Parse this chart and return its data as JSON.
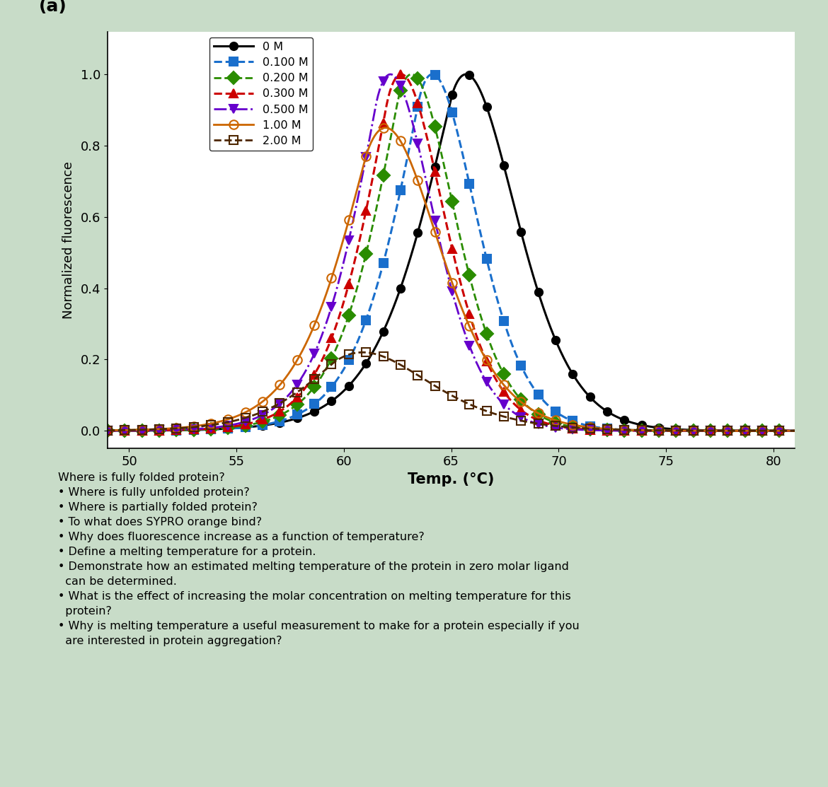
{
  "title_label": "(a)",
  "xlabel": "Temp. (°C)",
  "ylabel": "Normalized fluorescence",
  "xlim": [
    49,
    81
  ],
  "ylim": [
    -0.05,
    1.12
  ],
  "xticks": [
    50,
    55,
    60,
    65,
    70,
    75,
    80
  ],
  "yticks": [
    0,
    0.2,
    0.4,
    0.6,
    0.8,
    1
  ],
  "series": [
    {
      "label": "0 M",
      "color": "#000000",
      "linestyle": "-",
      "linewidth": 2.2,
      "marker": "o",
      "markersize": 8,
      "markerfacecolor": "#000000",
      "markeredgecolor": "#000000",
      "tm": 65.0,
      "peak": 1.0,
      "slope_up": 0.55,
      "slope_down": 0.18
    },
    {
      "label": "0.100 M",
      "color": "#1a6fcc",
      "linestyle": "--",
      "linewidth": 2.2,
      "marker": "s",
      "markersize": 9,
      "markerfacecolor": "#1a6fcc",
      "markeredgecolor": "#1a6fcc",
      "tm": 63.5,
      "peak": 1.0,
      "slope_up": 0.65,
      "slope_down": 0.22
    },
    {
      "label": "0.200 M",
      "color": "#2a8c00",
      "linestyle": "--",
      "linewidth": 2.0,
      "marker": "D",
      "markersize": 9,
      "markerfacecolor": "#2a8c00",
      "markeredgecolor": "#2a8c00",
      "tm": 62.5,
      "peak": 1.0,
      "slope_up": 0.68,
      "slope_down": 0.22
    },
    {
      "label": "0.300 M",
      "color": "#cc0000",
      "linestyle": "--",
      "linewidth": 2.2,
      "marker": "^",
      "markersize": 9,
      "markerfacecolor": "#cc0000",
      "markeredgecolor": "#cc0000",
      "tm": 62.0,
      "peak": 1.0,
      "slope_up": 0.7,
      "slope_down": 0.22
    },
    {
      "label": "0.500 M",
      "color": "#6600cc",
      "linestyle": "-.",
      "linewidth": 2.0,
      "marker": "v",
      "markersize": 9,
      "markerfacecolor": "#6600cc",
      "markeredgecolor": "#6600cc",
      "tm": 61.5,
      "peak": 1.0,
      "slope_up": 0.7,
      "slope_down": 0.22
    },
    {
      "label": "1.00 M",
      "color": "#cc6600",
      "linestyle": "-",
      "linewidth": 2.0,
      "marker": "o",
      "markersize": 9,
      "markerfacecolor": "none",
      "markeredgecolor": "#cc6600",
      "tm": 61.0,
      "peak": 0.85,
      "slope_up": 0.6,
      "slope_down": 0.15
    },
    {
      "label": "2.00 M",
      "color": "#4d2600",
      "linestyle": "--",
      "linewidth": 2.0,
      "marker": "s",
      "markersize": 9,
      "markerfacecolor": "none",
      "markeredgecolor": "#4d2600",
      "tm": 59.5,
      "peak": 0.22,
      "slope_up": 0.55,
      "slope_down": 0.1
    }
  ],
  "bg_color": "#c8dcc8"
}
